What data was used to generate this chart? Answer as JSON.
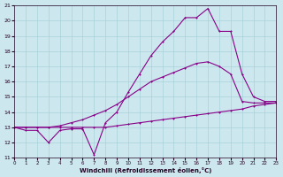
{
  "xlabel": "Windchill (Refroidissement éolien,°C)",
  "xlim": [
    0,
    23
  ],
  "ylim": [
    11,
    21
  ],
  "xticks": [
    0,
    1,
    2,
    3,
    4,
    5,
    6,
    7,
    8,
    9,
    10,
    11,
    12,
    13,
    14,
    15,
    16,
    17,
    18,
    19,
    20,
    21,
    22,
    23
  ],
  "yticks": [
    11,
    12,
    13,
    14,
    15,
    16,
    17,
    18,
    19,
    20,
    21
  ],
  "bg_color": "#cce8ee",
  "grid_color": "#a0ccd4",
  "line_color": "#880088",
  "line1_x": [
    0,
    1,
    2,
    3,
    4,
    5,
    6,
    7,
    8,
    9,
    10,
    11,
    12,
    13,
    14,
    15,
    16,
    17,
    18,
    19,
    20,
    21,
    22,
    23
  ],
  "line1_y": [
    13.0,
    13.0,
    13.0,
    13.0,
    13.0,
    13.0,
    13.0,
    13.0,
    13.0,
    13.1,
    13.2,
    13.3,
    13.4,
    13.5,
    13.6,
    13.7,
    13.8,
    13.9,
    14.0,
    14.1,
    14.2,
    14.4,
    14.5,
    14.6
  ],
  "line2_x": [
    0,
    1,
    2,
    3,
    4,
    5,
    6,
    7,
    8,
    9,
    10,
    11,
    12,
    13,
    14,
    15,
    16,
    17,
    18,
    19,
    20,
    21,
    22,
    23
  ],
  "line2_y": [
    13.0,
    13.0,
    13.0,
    13.0,
    13.1,
    13.3,
    13.5,
    13.8,
    14.1,
    14.5,
    15.0,
    15.5,
    16.0,
    16.3,
    16.6,
    16.9,
    17.2,
    17.3,
    17.0,
    16.5,
    14.7,
    14.6,
    14.6,
    14.6
  ],
  "line3_x": [
    0,
    1,
    2,
    3,
    4,
    5,
    6,
    7,
    8,
    9,
    10,
    11,
    12,
    13,
    14,
    15,
    16,
    17,
    18,
    19,
    20,
    21,
    22,
    23
  ],
  "line3_y": [
    13.0,
    12.8,
    12.8,
    12.0,
    12.8,
    12.9,
    12.9,
    11.2,
    13.3,
    14.0,
    15.3,
    16.5,
    17.7,
    18.6,
    19.3,
    20.2,
    20.2,
    20.8,
    19.3,
    19.3,
    16.5,
    15.0,
    14.7,
    14.7
  ]
}
